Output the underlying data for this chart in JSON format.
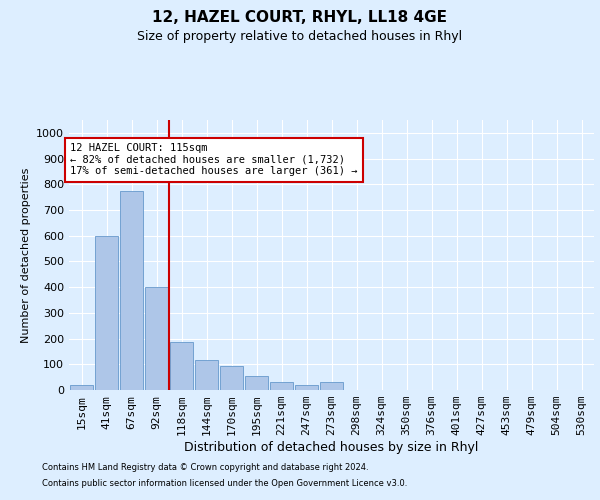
{
  "title": "12, HAZEL COURT, RHYL, LL18 4GE",
  "subtitle": "Size of property relative to detached houses in Rhyl",
  "xlabel": "Distribution of detached houses by size in Rhyl",
  "ylabel": "Number of detached properties",
  "footnote1": "Contains HM Land Registry data © Crown copyright and database right 2024.",
  "footnote2": "Contains public sector information licensed under the Open Government Licence v3.0.",
  "bar_labels": [
    "15sqm",
    "41sqm",
    "67sqm",
    "92sqm",
    "118sqm",
    "144sqm",
    "170sqm",
    "195sqm",
    "221sqm",
    "247sqm",
    "273sqm",
    "298sqm",
    "324sqm",
    "350sqm",
    "376sqm",
    "401sqm",
    "427sqm",
    "453sqm",
    "479sqm",
    "504sqm",
    "530sqm"
  ],
  "bar_values": [
    20,
    600,
    775,
    400,
    185,
    115,
    95,
    55,
    30,
    20,
    30,
    0,
    0,
    0,
    0,
    0,
    0,
    0,
    0,
    0,
    0
  ],
  "bar_color": "#aec6e8",
  "bar_edge_color": "#6699cc",
  "vline_color": "#cc0000",
  "vline_index": 3.5,
  "ylim_max": 1050,
  "yticks": [
    0,
    100,
    200,
    300,
    400,
    500,
    600,
    700,
    800,
    900,
    1000
  ],
  "annotation_line1": "12 HAZEL COURT: 115sqm",
  "annotation_line2": "← 82% of detached houses are smaller (1,732)",
  "annotation_line3": "17% of semi-detached houses are larger (361) →",
  "background_color": "#ddeeff",
  "grid_color": "#ffffff",
  "title_fontsize": 11,
  "subtitle_fontsize": 9,
  "ylabel_fontsize": 8,
  "xlabel_fontsize": 9,
  "tick_fontsize": 8,
  "annot_fontsize": 7.5
}
